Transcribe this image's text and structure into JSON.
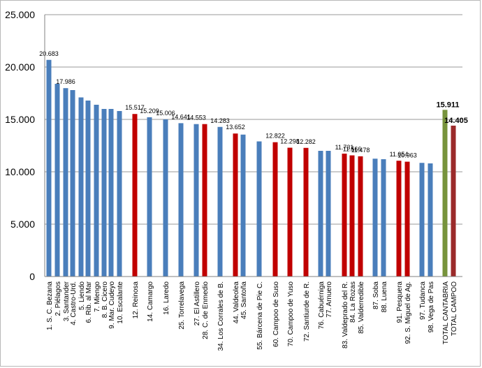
{
  "chart_data": {
    "type": "bar",
    "title": "",
    "xlabel": "",
    "ylabel": "",
    "ylim": [
      0,
      25000
    ],
    "y_ticks": [
      "0",
      "5.000",
      "10.000",
      "15.000",
      "20.000",
      "25.000"
    ],
    "grid": true,
    "legend": "none",
    "colors": {
      "blue": "#4a7ebb",
      "red": "#c00000",
      "green": "#77933c",
      "darkred": "#9b2a2a"
    },
    "categories": [
      "1. S. C. Bezana",
      "2. Piélagos",
      "3. Santander",
      "4. Castro-Urd.",
      "5. Liendo",
      "6. Rib. al Mar",
      "7. Miengo",
      "8. B. Cicero",
      "9. Mar. Cudeyo",
      "10. Escalante",
      "12. Reinosa",
      "14. Camargo",
      "16. Laredo",
      "25. Torrelavega",
      "27. El Astillero",
      "28. C. de Enmedio",
      "34. Los Corrales de B.",
      "44. Valdeolea",
      "45. Santoña",
      "55. Bárcena de Pie C.",
      "60. Campoo de Suso",
      "70. Campoo de Yuso",
      "72. Santiurde de R.",
      "76. Cabuérniga",
      "77. Arnuero",
      "83. Valdeprado del R.",
      "84. La Rozas",
      "85. Valderredible",
      "87. Soba",
      "88. Luena",
      "91. Pesquera",
      "92. S. Miguel de Ag.",
      "97. Tudanca",
      "98. Vega de Pas",
      "TOTAL CANTABRIA",
      "TOTAL CAMPOO"
    ],
    "values": [
      20683,
      18400,
      17986,
      17800,
      17100,
      16800,
      16400,
      16000,
      16000,
      15800,
      15517,
      15209,
      15006,
      14641,
      14553,
      14553,
      14283,
      13652,
      13550,
      12900,
      12822,
      12298,
      12282,
      12000,
      12000,
      11731,
      11566,
      11478,
      11250,
      11200,
      11054,
      10963,
      10850,
      10800,
      15911,
      14405
    ],
    "bar_colors": [
      "blue",
      "blue",
      "blue",
      "blue",
      "blue",
      "blue",
      "blue",
      "blue",
      "blue",
      "blue",
      "red",
      "blue",
      "blue",
      "blue",
      "blue",
      "red",
      "blue",
      "red",
      "blue",
      "blue",
      "red",
      "red",
      "red",
      "blue",
      "blue",
      "red",
      "red",
      "red",
      "blue",
      "blue",
      "red",
      "red",
      "blue",
      "blue",
      "green",
      "darkred"
    ],
    "data_labels": [
      {
        "index": 0,
        "text": "20.683"
      },
      {
        "index": 2,
        "text": "17.986"
      },
      {
        "index": 10,
        "text": "15.517"
      },
      {
        "index": 11,
        "text": "15.209"
      },
      {
        "index": 12,
        "text": "15.006"
      },
      {
        "index": 13,
        "text": "14.641"
      },
      {
        "index": 14,
        "text": "14.553"
      },
      {
        "index": 16,
        "text": "14.283"
      },
      {
        "index": 17,
        "text": "13.652"
      },
      {
        "index": 20,
        "text": "12.822"
      },
      {
        "index": 21,
        "text": "12.298"
      },
      {
        "index": 22,
        "text": "12.282"
      },
      {
        "index": 25,
        "text": "11.731"
      },
      {
        "index": 26,
        "text": "11.566"
      },
      {
        "index": 27,
        "text": "11.478"
      },
      {
        "index": 30,
        "text": "11.054"
      },
      {
        "index": 31,
        "text": "10.963"
      },
      {
        "index": 34,
        "text": "15.911",
        "bold": true
      },
      {
        "index": 35,
        "text": "14.405",
        "bold": true
      }
    ]
  }
}
